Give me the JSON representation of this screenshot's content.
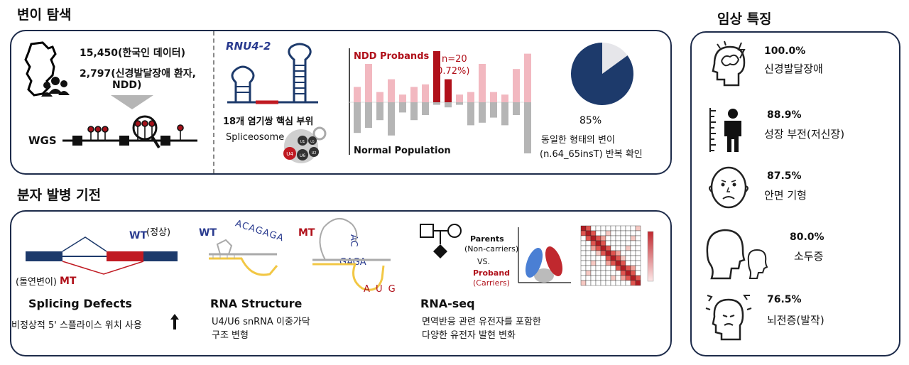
{
  "variant_search": {
    "title": "변이 탐색",
    "korean_count": "15,450(한국인 데이터)",
    "ndd_count": "2,797(신경발달장애 환자,",
    "ndd_abbrev": "NDD)",
    "wgs_label": "WGS",
    "gene_label": "RNU4-2",
    "core_site": "18개 염기쌍 핵심 부위",
    "spliceosome_label": "Spliceosome",
    "snrna": [
      "U4",
      "U6",
      "U2",
      "U1",
      "U5"
    ],
    "chart_top_label": "NDD Probands",
    "chart_bottom_label": "Normal Population",
    "chart_n": "n=20",
    "chart_pct": "(0.72%)",
    "pie_pct": "85%",
    "pie_desc": "동일한 형태의 변이",
    "pie_variant": "(n.64_65insT) 반복 확인"
  },
  "mechanism": {
    "title": "분자 발병 기전",
    "splicing": {
      "wt_label": "WT",
      "wt_note": "(정상)",
      "mt_note": "(돌연변이)",
      "mt_label": "MT",
      "heading": "Splicing Defects",
      "desc": "비정상적 5' 스플라이스 위치 사용"
    },
    "rna_structure": {
      "wt_label": "WT",
      "mt_label": "MT",
      "wt_seq": "ACAGAGA",
      "mt_seq_top": "AC",
      "mt_seq_mid": "GAGA",
      "mt_seq_bottom": "A U G",
      "heading": "RNA Structure",
      "desc_line1": "U4/U6 snRNA 이중가닥",
      "desc_line2": "구조 변형"
    },
    "rna_seq": {
      "parents": "Parents",
      "parents_note": "(Non-carriers)",
      "vs": "VS.",
      "proband": "Proband",
      "proband_note": "(Carriers)",
      "heading": "RNA-seq",
      "desc_line1": "면역반응 관련 유전자를 포함한",
      "desc_line2": "다양한 유전자 발현 변화"
    }
  },
  "clinical": {
    "title": "임상 특징",
    "features": [
      {
        "pct": "100.0%",
        "label": "신경발달장애",
        "icon": "brain-icon"
      },
      {
        "pct": "88.9%",
        "label": "성장 부전(저신장)",
        "icon": "height-icon"
      },
      {
        "pct": "87.5%",
        "label": "안면 기형",
        "icon": "face-icon"
      },
      {
        "pct": "80.0%",
        "label": "소두증",
        "icon": "microcephaly-icon"
      },
      {
        "pct": "76.5%",
        "label": "뇌전증(발작)",
        "icon": "seizure-icon"
      }
    ]
  },
  "colors": {
    "navy": "#1d3a6b",
    "red": "#b0101a",
    "pink": "#f2b8c0",
    "gray": "#b5b5b5",
    "yellow": "#f2c744"
  },
  "chart_data": {
    "type": "bar",
    "title": "",
    "series": [
      {
        "name": "NDD Probands",
        "values": [
          0.3,
          0.75,
          0.2,
          0.45,
          0.15,
          0.3,
          0.35,
          1.0,
          0.45,
          0.15,
          0.2,
          0.75,
          0.2,
          0.15,
          0.65,
          0.95
        ]
      },
      {
        "name": "Normal Population",
        "values": [
          0.6,
          0.5,
          0.35,
          0.65,
          0.2,
          0.35,
          0.25,
          0.05,
          0.1,
          0.05,
          0.45,
          0.4,
          0.3,
          0.45,
          0.25,
          1.0
        ]
      }
    ],
    "highlight_n": 20,
    "highlight_pct": 0.72,
    "pie": {
      "value": 85,
      "remainder": 15
    }
  }
}
